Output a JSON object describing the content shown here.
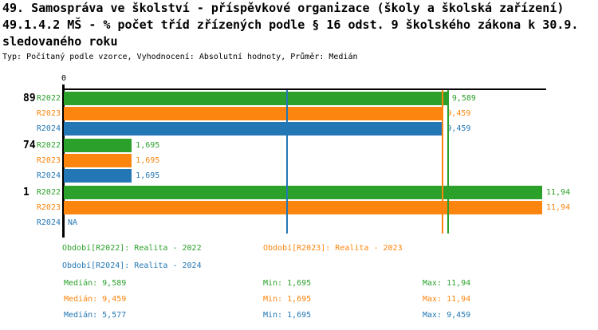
{
  "title": {
    "line1": "49. Samospráva ve školství - příspěvkové organizace (školy a školská zařízení)",
    "line2": "49.1.4.2 MŠ - % počet tříd zřízených podle § 16 odst. 9 školského zákona k 30.9.",
    "line3": "sledovaného roku",
    "subtitle": "Typ: Počítaný podle vzorce, Vyhodnocení: Absolutní hodnoty, Průměr: Medián"
  },
  "colors": {
    "r2022": "#2BA12B",
    "r2023": "#FC850F",
    "r2024": "#2377B4",
    "axis": "#000000"
  },
  "chart_data": {
    "type": "bar",
    "orientation": "horizontal",
    "x_axis": {
      "zero_label": "0",
      "min": 0,
      "max": 11.94,
      "decimal_style": "comma"
    },
    "series_names": [
      "R2022",
      "R2023",
      "R2024"
    ],
    "groups": [
      {
        "label": "89",
        "bars": [
          {
            "series": "R2022",
            "value": 9.589,
            "label": "9,589"
          },
          {
            "series": "R2023",
            "value": 9.459,
            "label": "9,459"
          },
          {
            "series": "R2024",
            "value": 9.459,
            "label": "9,459"
          }
        ]
      },
      {
        "label": "74",
        "bars": [
          {
            "series": "R2022",
            "value": 1.695,
            "label": "1,695"
          },
          {
            "series": "R2023",
            "value": 1.695,
            "label": "1,695"
          },
          {
            "series": "R2024",
            "value": 1.695,
            "label": "1,695"
          }
        ]
      },
      {
        "label": "1",
        "bars": [
          {
            "series": "R2022",
            "value": 11.94,
            "label": "11,94"
          },
          {
            "series": "R2023",
            "value": 11.94,
            "label": "11,94"
          },
          {
            "series": "R2024",
            "value": null,
            "label": "NA"
          }
        ]
      }
    ],
    "median_lines": [
      {
        "series": "R2022",
        "value": 9.589
      },
      {
        "series": "R2023",
        "value": 9.459
      },
      {
        "series": "R2024",
        "value": 5.577
      }
    ],
    "legend_position": "bottom",
    "grid": false
  },
  "legend": [
    {
      "series": "R2022",
      "label": "Období[R2022]: Realita - 2022"
    },
    {
      "series": "R2023",
      "label": "Období[R2023]: Realita - 2023"
    },
    {
      "series": "R2024",
      "label": "Období[R2024]: Realita - 2024"
    }
  ],
  "stats": [
    {
      "series": "R2022",
      "median": "Medián: 9,589",
      "min": "Min: 1,695",
      "max": "Max: 11,94"
    },
    {
      "series": "R2023",
      "median": "Medián: 9,459",
      "min": "Min: 1,695",
      "max": "Max: 11,94"
    },
    {
      "series": "R2024",
      "median": "Medián: 5,577",
      "min": "Min: 1,695",
      "max": "Max: 9,459"
    }
  ]
}
